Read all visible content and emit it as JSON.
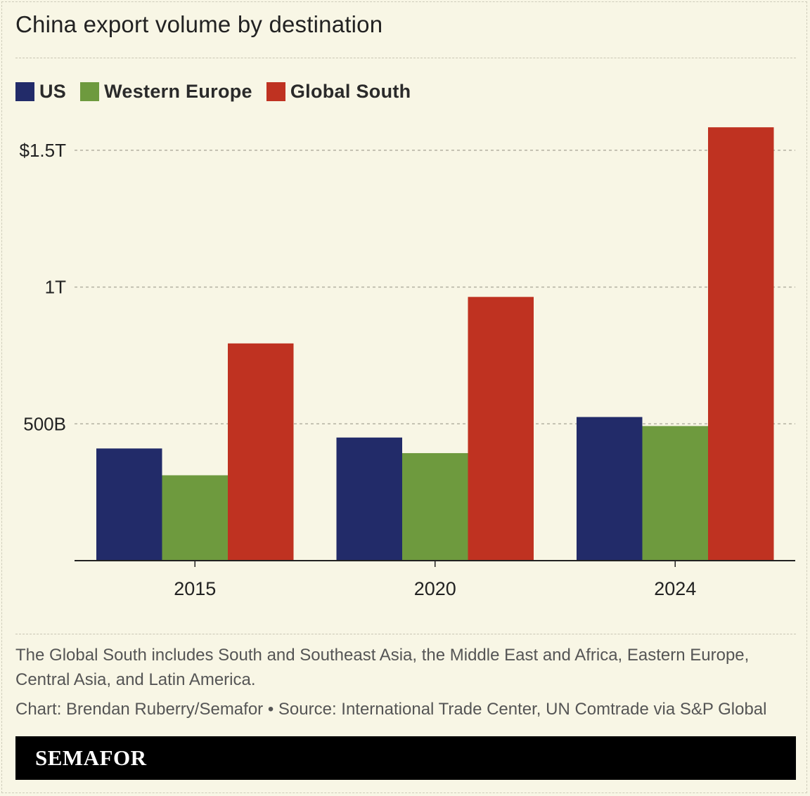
{
  "title": "China export volume by destination",
  "legend": [
    {
      "label": "US",
      "color": "#222b69"
    },
    {
      "label": "Western Europe",
      "color": "#6e9a3e"
    },
    {
      "label": "Global South",
      "color": "#bf3221"
    }
  ],
  "note": "The Global South includes South and Southeast Asia, the Middle East and Africa, Eastern Europe, Central Asia, and Latin America.",
  "credit": "Chart: Brendan Ruberry/Semafor • Source: International Trade Center, UN Comtrade via S&P Global",
  "brand": "SEMAFOR",
  "chart_data": {
    "type": "bar",
    "categories": [
      "2015",
      "2020",
      "2024"
    ],
    "series": [
      {
        "name": "US",
        "color": "#222b69",
        "values": [
          410,
          450,
          525
        ]
      },
      {
        "name": "Western Europe",
        "color": "#6e9a3e",
        "values": [
          312,
          393,
          492
        ]
      },
      {
        "name": "Global South",
        "color": "#bf3221",
        "values": [
          794,
          964,
          1584
        ]
      }
    ],
    "unit": "billions of USD",
    "ylim": [
      0,
      1700
    ],
    "yticks": [
      {
        "value": 500,
        "label": "500B"
      },
      {
        "value": 1000,
        "label": "1T"
      },
      {
        "value": 1500,
        "label": "$1.5T"
      }
    ],
    "xlabel": "",
    "ylabel": "",
    "grid": true,
    "legend_position": "top-left"
  }
}
